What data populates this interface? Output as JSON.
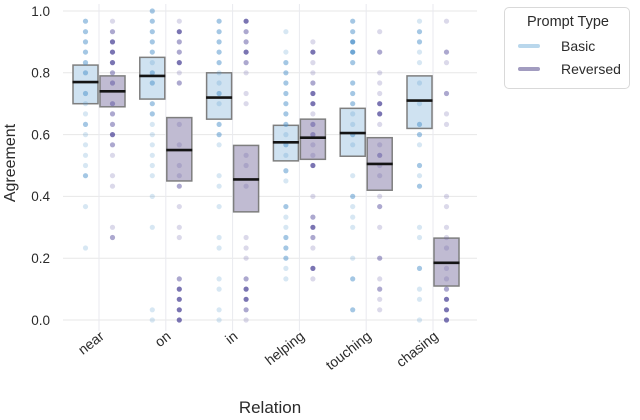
{
  "chart_data": {
    "type": "boxplot_with_strip_points",
    "title": "",
    "xlabel": "Relation",
    "ylabel": "Agreement",
    "ylim": [
      0.0,
      1.0
    ],
    "grid": true,
    "categories": [
      "near",
      "on",
      "in",
      "helping",
      "touching",
      "chasing"
    ],
    "yticks": [
      {
        "label": "0.0",
        "value": 0.0
      },
      {
        "label": "0.2",
        "value": 0.2
      },
      {
        "label": "0.4",
        "value": 0.4
      },
      {
        "label": "0.6",
        "value": 0.6
      },
      {
        "label": "0.8",
        "value": 0.8
      },
      {
        "label": "1.0",
        "value": 1.0
      }
    ],
    "legend": {
      "title": "Prompt Type",
      "position": "outside-upper-right",
      "items": [
        {
          "label": "Basic",
          "color": "#b9d7ec"
        },
        {
          "label": "Reversed",
          "color": "#a29cc0"
        }
      ]
    },
    "series": [
      {
        "name": "Basic",
        "box_fill": "#cfe2f1",
        "box_edge": "#7e7e7e",
        "median_color": "#141414",
        "point_color": "#4a90c9",
        "boxes": [
          {
            "category": "near",
            "q1": 0.7,
            "median": 0.77,
            "q3": 0.825
          },
          {
            "category": "on",
            "q1": 0.715,
            "median": 0.79,
            "q3": 0.85
          },
          {
            "category": "in",
            "q1": 0.65,
            "median": 0.72,
            "q3": 0.8
          },
          {
            "category": "helping",
            "q1": 0.515,
            "median": 0.575,
            "q3": 0.63
          },
          {
            "category": "touching",
            "q1": 0.53,
            "median": 0.605,
            "q3": 0.685
          },
          {
            "category": "chasing",
            "q1": 0.62,
            "median": 0.71,
            "q3": 0.79
          }
        ],
        "points": {
          "near": [
            [
              0.967,
              2
            ],
            [
              0.933,
              2
            ],
            [
              0.9,
              2
            ],
            [
              0.867,
              2
            ],
            [
              0.833,
              2
            ],
            [
              0.8,
              2
            ],
            [
              0.733,
              2
            ],
            [
              0.7,
              1
            ],
            [
              0.667,
              1
            ],
            [
              0.633,
              2
            ],
            [
              0.6,
              1
            ],
            [
              0.567,
              1
            ],
            [
              0.533,
              1
            ],
            [
              0.5,
              1
            ],
            [
              0.467,
              2
            ],
            [
              0.367,
              1
            ],
            [
              0.233,
              1
            ]
          ],
          "on": [
            [
              1.0,
              2
            ],
            [
              0.967,
              2
            ],
            [
              0.933,
              2
            ],
            [
              0.9,
              2
            ],
            [
              0.867,
              2
            ],
            [
              0.833,
              1
            ],
            [
              0.8,
              2
            ],
            [
              0.767,
              2
            ],
            [
              0.7,
              2
            ],
            [
              0.667,
              2
            ],
            [
              0.633,
              1
            ],
            [
              0.6,
              1
            ],
            [
              0.567,
              1
            ],
            [
              0.533,
              1
            ],
            [
              0.5,
              1
            ],
            [
              0.467,
              1
            ],
            [
              0.4,
              1
            ],
            [
              0.3,
              1
            ],
            [
              0.033,
              1
            ],
            [
              0.0,
              1
            ]
          ],
          "in": [
            [
              0.967,
              2
            ],
            [
              0.933,
              2
            ],
            [
              0.9,
              2
            ],
            [
              0.867,
              2
            ],
            [
              0.833,
              2
            ],
            [
              0.8,
              1
            ],
            [
              0.767,
              1
            ],
            [
              0.733,
              2
            ],
            [
              0.7,
              1
            ],
            [
              0.633,
              2
            ],
            [
              0.6,
              2
            ],
            [
              0.567,
              1
            ],
            [
              0.467,
              1
            ],
            [
              0.433,
              1
            ],
            [
              0.367,
              1
            ],
            [
              0.267,
              1
            ],
            [
              0.233,
              1
            ],
            [
              0.133,
              1
            ],
            [
              0.1,
              1
            ],
            [
              0.033,
              1
            ],
            [
              0.0,
              1
            ]
          ],
          "helping": [
            [
              0.933,
              1
            ],
            [
              0.867,
              1
            ],
            [
              0.833,
              2
            ],
            [
              0.8,
              2
            ],
            [
              0.767,
              2
            ],
            [
              0.733,
              2
            ],
            [
              0.7,
              2
            ],
            [
              0.667,
              2
            ],
            [
              0.633,
              2
            ],
            [
              0.6,
              1
            ],
            [
              0.567,
              2
            ],
            [
              0.533,
              1
            ],
            [
              0.483,
              2
            ],
            [
              0.45,
              1
            ],
            [
              0.367,
              2
            ],
            [
              0.333,
              1
            ],
            [
              0.3,
              1
            ],
            [
              0.267,
              2
            ],
            [
              0.233,
              2
            ],
            [
              0.2,
              2
            ],
            [
              0.167,
              1
            ],
            [
              0.133,
              1
            ]
          ],
          "touching": [
            [
              0.967,
              2
            ],
            [
              0.933,
              2
            ],
            [
              0.9,
              3
            ],
            [
              0.867,
              3
            ],
            [
              0.833,
              2
            ],
            [
              0.767,
              2
            ],
            [
              0.733,
              2
            ],
            [
              0.7,
              2
            ],
            [
              0.667,
              1
            ],
            [
              0.633,
              1
            ],
            [
              0.6,
              2
            ],
            [
              0.567,
              1
            ],
            [
              0.467,
              1
            ],
            [
              0.4,
              2
            ],
            [
              0.367,
              1
            ],
            [
              0.333,
              1
            ],
            [
              0.3,
              1
            ],
            [
              0.2,
              1
            ],
            [
              0.133,
              2
            ],
            [
              0.033,
              2
            ]
          ],
          "chasing": [
            [
              0.967,
              1
            ],
            [
              0.933,
              2
            ],
            [
              0.9,
              2
            ],
            [
              0.867,
              1
            ],
            [
              0.833,
              1
            ],
            [
              0.767,
              1
            ],
            [
              0.7,
              1
            ],
            [
              0.633,
              2
            ],
            [
              0.6,
              2
            ],
            [
              0.567,
              1
            ],
            [
              0.5,
              2
            ],
            [
              0.467,
              1
            ],
            [
              0.433,
              2
            ],
            [
              0.3,
              1
            ],
            [
              0.267,
              1
            ],
            [
              0.167,
              2
            ],
            [
              0.1,
              1
            ],
            [
              0.067,
              1
            ],
            [
              0.0,
              1
            ]
          ]
        }
      },
      {
        "name": "Reversed",
        "box_fill": "#c0bbd2",
        "box_edge": "#7e7e7e",
        "median_color": "#141414",
        "point_color": "#59519f",
        "boxes": [
          {
            "category": "near",
            "q1": 0.69,
            "median": 0.74,
            "q3": 0.79
          },
          {
            "category": "on",
            "q1": 0.45,
            "median": 0.55,
            "q3": 0.655
          },
          {
            "category": "in",
            "q1": 0.35,
            "median": 0.455,
            "q3": 0.565
          },
          {
            "category": "helping",
            "q1": 0.52,
            "median": 0.59,
            "q3": 0.65
          },
          {
            "category": "touching",
            "q1": 0.42,
            "median": 0.505,
            "q3": 0.59
          },
          {
            "category": "chasing",
            "q1": 0.11,
            "median": 0.185,
            "q3": 0.265
          }
        ],
        "points": {
          "near": [
            [
              0.967,
              1
            ],
            [
              0.933,
              2
            ],
            [
              0.9,
              3
            ],
            [
              0.867,
              3
            ],
            [
              0.833,
              3
            ],
            [
              0.8,
              2
            ],
            [
              0.767,
              2
            ],
            [
              0.7,
              2
            ],
            [
              0.667,
              2
            ],
            [
              0.633,
              2
            ],
            [
              0.6,
              3
            ],
            [
              0.567,
              2
            ],
            [
              0.533,
              1
            ],
            [
              0.467,
              1
            ],
            [
              0.433,
              1
            ],
            [
              0.3,
              1
            ],
            [
              0.267,
              2
            ]
          ],
          "on": [
            [
              0.967,
              1
            ],
            [
              0.933,
              3
            ],
            [
              0.9,
              2
            ],
            [
              0.867,
              2
            ],
            [
              0.833,
              3
            ],
            [
              0.8,
              1
            ],
            [
              0.767,
              2
            ],
            [
              0.633,
              1
            ],
            [
              0.567,
              1
            ],
            [
              0.5,
              1
            ],
            [
              0.467,
              1
            ],
            [
              0.433,
              2
            ],
            [
              0.367,
              1
            ],
            [
              0.3,
              1
            ],
            [
              0.267,
              1
            ],
            [
              0.133,
              2
            ],
            [
              0.1,
              3
            ],
            [
              0.067,
              3
            ],
            [
              0.033,
              3
            ],
            [
              0.0,
              3
            ]
          ],
          "in": [
            [
              0.967,
              3
            ],
            [
              0.933,
              2
            ],
            [
              0.9,
              2
            ],
            [
              0.867,
              3
            ],
            [
              0.833,
              2
            ],
            [
              0.8,
              1
            ],
            [
              0.733,
              1
            ],
            [
              0.7,
              1
            ],
            [
              0.533,
              1
            ],
            [
              0.5,
              1
            ],
            [
              0.433,
              1
            ],
            [
              0.267,
              1
            ],
            [
              0.233,
              1
            ],
            [
              0.2,
              1
            ],
            [
              0.133,
              2
            ],
            [
              0.1,
              3
            ],
            [
              0.067,
              3
            ],
            [
              0.033,
              2
            ],
            [
              0.0,
              1
            ]
          ],
          "helping": [
            [
              0.9,
              1
            ],
            [
              0.867,
              3
            ],
            [
              0.833,
              1
            ],
            [
              0.8,
              1
            ],
            [
              0.767,
              2
            ],
            [
              0.733,
              3
            ],
            [
              0.7,
              3
            ],
            [
              0.667,
              1
            ],
            [
              0.633,
              2
            ],
            [
              0.6,
              2
            ],
            [
              0.567,
              1
            ],
            [
              0.533,
              1
            ],
            [
              0.5,
              3
            ],
            [
              0.4,
              1
            ],
            [
              0.333,
              2
            ],
            [
              0.3,
              3
            ],
            [
              0.267,
              2
            ],
            [
              0.233,
              1
            ],
            [
              0.167,
              3
            ],
            [
              0.133,
              1
            ]
          ],
          "touching": [
            [
              0.933,
              1
            ],
            [
              0.867,
              2
            ],
            [
              0.8,
              1
            ],
            [
              0.767,
              1
            ],
            [
              0.733,
              1
            ],
            [
              0.7,
              3
            ],
            [
              0.667,
              3
            ],
            [
              0.633,
              1
            ],
            [
              0.567,
              1
            ],
            [
              0.533,
              2
            ],
            [
              0.5,
              1
            ],
            [
              0.467,
              1
            ],
            [
              0.4,
              1
            ],
            [
              0.367,
              2
            ],
            [
              0.3,
              1
            ],
            [
              0.2,
              2
            ],
            [
              0.133,
              1
            ],
            [
              0.1,
              2
            ],
            [
              0.067,
              1
            ],
            [
              0.033,
              1
            ]
          ],
          "chasing": [
            [
              0.967,
              1
            ],
            [
              0.867,
              2
            ],
            [
              0.833,
              1
            ],
            [
              0.733,
              2
            ],
            [
              0.667,
              1
            ],
            [
              0.633,
              1
            ],
            [
              0.4,
              1
            ],
            [
              0.367,
              1
            ],
            [
              0.3,
              1
            ],
            [
              0.267,
              1
            ],
            [
              0.233,
              1
            ],
            [
              0.167,
              1
            ],
            [
              0.133,
              1
            ],
            [
              0.1,
              2
            ],
            [
              0.067,
              3
            ],
            [
              0.033,
              3
            ],
            [
              0.0,
              3
            ]
          ]
        }
      }
    ]
  }
}
